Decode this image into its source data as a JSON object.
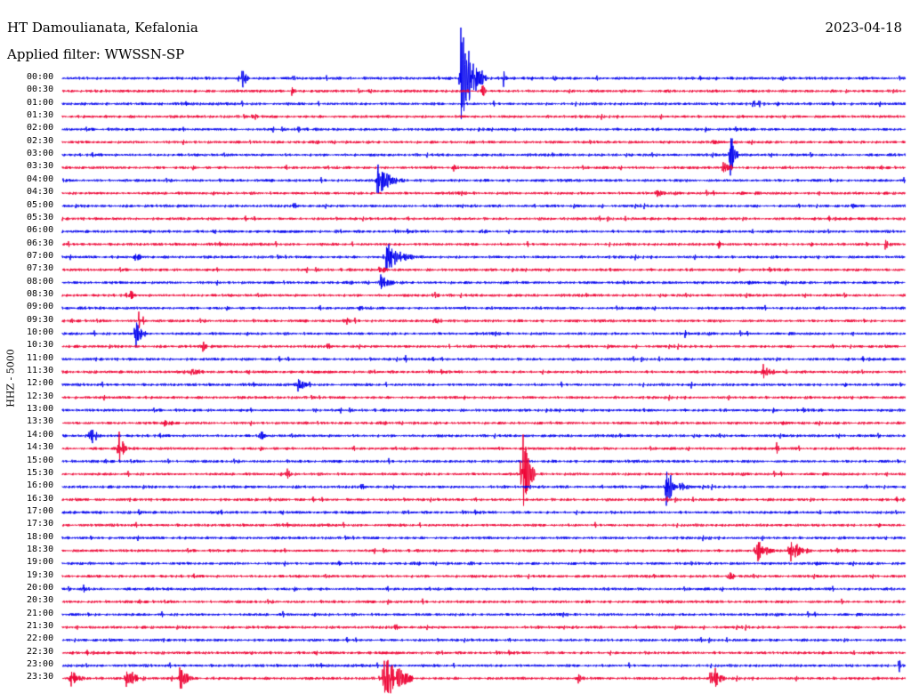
{
  "header": {
    "station": "HT Damoulianata, Kefalonia",
    "date": "2023-04-18",
    "filter": "Applied filter: WWSSN-SP"
  },
  "chart_data": {
    "type": "line",
    "title": "HT Damoulianata, Kefalonia",
    "ylabel": "HHZ - 5000",
    "colors": [
      "#0000ee",
      "#ee0033"
    ],
    "row_labels": [
      "00:00",
      "00:30",
      "01:00",
      "01:30",
      "02:00",
      "02:30",
      "03:00",
      "03:30",
      "04:00",
      "04:30",
      "05:00",
      "05:30",
      "06:00",
      "06:30",
      "07:00",
      "07:30",
      "08:00",
      "08:30",
      "09:00",
      "09:30",
      "10:00",
      "10:30",
      "11:00",
      "11:30",
      "12:00",
      "12:30",
      "13:00",
      "13:30",
      "14:00",
      "14:30",
      "15:00",
      "15:30",
      "16:00",
      "16:30",
      "17:00",
      "17:30",
      "18:00",
      "18:30",
      "19:00",
      "19:30",
      "20:00",
      "20:30",
      "21:00",
      "21:30",
      "22:00",
      "22:30",
      "23:00",
      "23:30"
    ],
    "events": [
      [
        0,
        272,
        14,
        10
      ],
      [
        0,
        518,
        68,
        28
      ],
      [
        0,
        566,
        10,
        8
      ],
      [
        1,
        328,
        7,
        10
      ],
      [
        1,
        403,
        4,
        6
      ],
      [
        1,
        542,
        8,
        10
      ],
      [
        2,
        848,
        12,
        14
      ],
      [
        3,
        285,
        8,
        8
      ],
      [
        4,
        335,
        5,
        20
      ],
      [
        5,
        800,
        4,
        12
      ],
      [
        6,
        821,
        30,
        10
      ],
      [
        7,
        510,
        6,
        6
      ],
      [
        7,
        812,
        8,
        16
      ],
      [
        8,
        424,
        20,
        30
      ],
      [
        9,
        738,
        6,
        18
      ],
      [
        9,
        832,
        3,
        14
      ],
      [
        10,
        958,
        4,
        8
      ],
      [
        11,
        511,
        6,
        4
      ],
      [
        12,
        542,
        6,
        10
      ],
      [
        13,
        808,
        6,
        6
      ],
      [
        13,
        995,
        6,
        20
      ],
      [
        14,
        432,
        22,
        34
      ],
      [
        14,
        152,
        8,
        12
      ],
      [
        15,
        426,
        6,
        20
      ],
      [
        16,
        428,
        10,
        24
      ],
      [
        16,
        140,
        3,
        6
      ],
      [
        17,
        147,
        8,
        6
      ],
      [
        17,
        488,
        8,
        10
      ],
      [
        18,
        404,
        3,
        22
      ],
      [
        19,
        156,
        16,
        10
      ],
      [
        19,
        388,
        8,
        10
      ],
      [
        19,
        485,
        4,
        40
      ],
      [
        20,
        153,
        22,
        12
      ],
      [
        20,
        770,
        6,
        4
      ],
      [
        21,
        228,
        8,
        8
      ],
      [
        21,
        504,
        4,
        6
      ],
      [
        22,
        487,
        10,
        4
      ],
      [
        22,
        456,
        6,
        4
      ],
      [
        23,
        213,
        6,
        30
      ],
      [
        23,
        858,
        10,
        20
      ],
      [
        24,
        335,
        8,
        22
      ],
      [
        24,
        776,
        6,
        8
      ],
      [
        25,
        522,
        4,
        6
      ],
      [
        26,
        352,
        4,
        20
      ],
      [
        27,
        182,
        5,
        40
      ],
      [
        28,
        102,
        20,
        10
      ],
      [
        28,
        293,
        10,
        6
      ],
      [
        29,
        134,
        20,
        10
      ],
      [
        29,
        873,
        8,
        6
      ],
      [
        30,
        188,
        4,
        14
      ],
      [
        31,
        587,
        56,
        14
      ],
      [
        31,
        323,
        10,
        6
      ],
      [
        32,
        748,
        24,
        28
      ],
      [
        32,
        332,
        4,
        4
      ],
      [
        33,
        302,
        5,
        6
      ],
      [
        34,
        155,
        5,
        10
      ],
      [
        34,
        248,
        5,
        6
      ],
      [
        36,
        797,
        6,
        4
      ],
      [
        37,
        850,
        14,
        28
      ],
      [
        37,
        888,
        16,
        24
      ],
      [
        38,
        381,
        4,
        4
      ],
      [
        38,
        530,
        4,
        4
      ],
      [
        39,
        820,
        5,
        22
      ],
      [
        40,
        93,
        6,
        16
      ],
      [
        41,
        436,
        4,
        4
      ],
      [
        41,
        946,
        4,
        4
      ],
      [
        42,
        318,
        4,
        4
      ],
      [
        44,
        688,
        4,
        4
      ],
      [
        46,
        1010,
        10,
        8
      ],
      [
        47,
        80,
        12,
        20
      ],
      [
        47,
        142,
        14,
        26
      ],
      [
        47,
        202,
        20,
        14
      ],
      [
        47,
        432,
        36,
        32
      ],
      [
        47,
        650,
        8,
        14
      ],
      [
        47,
        800,
        22,
        14
      ]
    ]
  }
}
